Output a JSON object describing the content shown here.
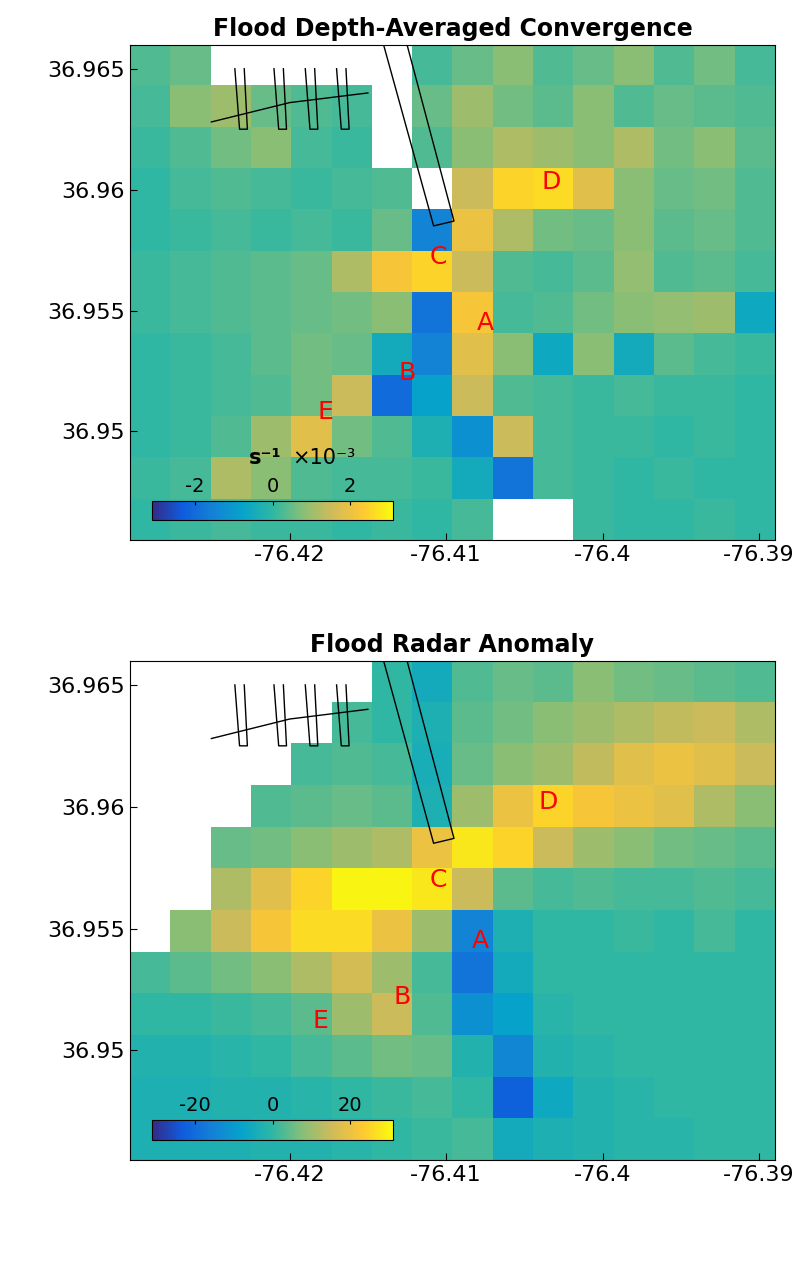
{
  "chart_data": [
    {
      "type": "heatmap",
      "title": "Flood Depth-Averaged Convergence",
      "xlim": [
        -76.4302,
        -76.389
      ],
      "ylim": [
        36.9455,
        36.966
      ],
      "xticks": [
        -76.42,
        -76.41,
        -76.4,
        -76.39
      ],
      "yticks": [
        36.95,
        36.955,
        36.96,
        36.965
      ],
      "cells": [
        [
          0.3,
          0.5,
          null,
          null,
          null,
          null,
          null,
          0.2,
          0.5,
          0.8,
          0.3,
          0.5,
          0.8,
          0.3,
          0.6,
          0.2
        ],
        [
          0.2,
          0.8,
          1.0,
          0.5,
          0.3,
          0.2,
          null,
          0.5,
          1.0,
          0.6,
          0.4,
          0.8,
          0.3,
          0.5,
          0.4,
          0.3
        ],
        [
          0.1,
          0.3,
          0.6,
          0.8,
          0.2,
          0.1,
          null,
          0.3,
          0.8,
          1.2,
          1.0,
          0.8,
          1.2,
          0.6,
          0.8,
          0.4
        ],
        [
          0.0,
          0.2,
          0.3,
          0.2,
          0.1,
          0.2,
          0.3,
          null,
          1.5,
          2.5,
          2.6,
          1.8,
          0.8,
          0.5,
          0.6,
          0.3
        ],
        [
          0.0,
          0.1,
          0.2,
          0.1,
          0.2,
          0.1,
          0.5,
          -1.5,
          2.0,
          1.2,
          0.6,
          0.5,
          0.8,
          0.4,
          0.5,
          0.3
        ],
        [
          0.1,
          0.2,
          0.3,
          0.4,
          0.5,
          1.2,
          2.2,
          2.5,
          1.5,
          0.3,
          0.2,
          0.4,
          0.9,
          0.3,
          0.4,
          0.2
        ],
        [
          0.1,
          0.2,
          0.3,
          0.4,
          0.5,
          0.6,
          0.8,
          -1.8,
          2.2,
          0.2,
          0.3,
          0.6,
          0.8,
          0.9,
          1.0,
          -0.6
        ],
        [
          0.0,
          0.1,
          0.2,
          0.4,
          0.6,
          0.5,
          -0.5,
          -1.5,
          1.8,
          0.8,
          -0.6,
          0.8,
          -0.5,
          0.4,
          0.2,
          0.1
        ],
        [
          0.0,
          0.1,
          0.2,
          0.3,
          0.6,
          1.5,
          -2.0,
          -0.8,
          1.5,
          0.3,
          0.2,
          0.1,
          0.2,
          0.1,
          0.1,
          0.0
        ],
        [
          0.0,
          0.1,
          0.3,
          1.0,
          1.8,
          0.6,
          0.3,
          -0.3,
          -1.2,
          1.5,
          0.2,
          0.1,
          0.1,
          0.0,
          0.1,
          0.0
        ],
        [
          0.1,
          0.2,
          1.2,
          0.8,
          0.3,
          0.2,
          0.2,
          0.1,
          -0.5,
          -1.8,
          0.2,
          0.1,
          0.0,
          0.1,
          0.0,
          0.0
        ],
        [
          0.0,
          0.1,
          0.2,
          0.1,
          0.1,
          0.0,
          0.1,
          0.0,
          0.2,
          null,
          null,
          0.1,
          0.0,
          0.0,
          0.1,
          0.0
        ]
      ],
      "colorbar": {
        "range": [
          -3.1,
          3.1
        ],
        "ticks": [
          -2,
          0,
          2
        ],
        "label": "s⁻¹",
        "multiplier": "×10⁻³"
      },
      "annotations": [
        {
          "text": "A",
          "x": -76.4075,
          "y": 36.9545
        },
        {
          "text": "B",
          "x": -76.4125,
          "y": 36.9524
        },
        {
          "text": "C",
          "x": -76.4105,
          "y": 36.9572
        },
        {
          "text": "D",
          "x": -76.4033,
          "y": 36.9603
        },
        {
          "text": "E",
          "x": -76.4177,
          "y": 36.9508
        }
      ]
    },
    {
      "type": "heatmap",
      "title": "Flood Radar Anomaly",
      "xlim": [
        -76.4302,
        -76.389
      ],
      "ylim": [
        36.9455,
        36.966
      ],
      "xticks": [
        -76.42,
        -76.41,
        -76.4,
        -76.39
      ],
      "yticks": [
        36.95,
        36.955,
        36.96,
        36.965
      ],
      "cells": [
        [
          null,
          null,
          null,
          null,
          null,
          null,
          0,
          -5,
          3,
          5,
          4,
          8,
          6,
          5,
          4,
          3
        ],
        [
          null,
          null,
          null,
          null,
          null,
          2,
          0,
          -3,
          4,
          6,
          8,
          10,
          12,
          14,
          15,
          12
        ],
        [
          null,
          null,
          null,
          null,
          2,
          3,
          2,
          -4,
          5,
          8,
          10,
          14,
          18,
          20,
          18,
          15
        ],
        [
          null,
          null,
          null,
          3,
          4,
          5,
          4,
          -3,
          10,
          20,
          25,
          22,
          20,
          18,
          12,
          8
        ],
        [
          null,
          null,
          5,
          6,
          8,
          10,
          12,
          20,
          28,
          25,
          15,
          10,
          8,
          6,
          5,
          4
        ],
        [
          null,
          null,
          12,
          18,
          25,
          30,
          30,
          28,
          15,
          4,
          2,
          3,
          2,
          2,
          3,
          2
        ],
        [
          null,
          8,
          15,
          22,
          26,
          26,
          20,
          10,
          -15,
          -3,
          0,
          0,
          1,
          0,
          2,
          0
        ],
        [
          2,
          4,
          6,
          8,
          12,
          16,
          10,
          2,
          -18,
          -5,
          0,
          0,
          0,
          0,
          0,
          0
        ],
        [
          0,
          0,
          1,
          2,
          4,
          10,
          15,
          3,
          -12,
          -8,
          -1,
          0,
          0,
          0,
          0,
          0
        ],
        [
          -2,
          -2,
          -1,
          0,
          2,
          4,
          6,
          5,
          -2,
          -14,
          -2,
          -1,
          0,
          0,
          0,
          0
        ],
        [
          -3,
          -3,
          -2,
          -2,
          -1,
          0,
          1,
          2,
          0,
          -22,
          -6,
          -2,
          -1,
          0,
          0,
          0
        ],
        [
          -3,
          -3,
          -3,
          -2,
          -2,
          -1,
          0,
          1,
          2,
          -5,
          -3,
          -2,
          -1,
          -1,
          0,
          0
        ]
      ],
      "colorbar": {
        "range": [
          -31,
          31
        ],
        "ticks": [
          -20,
          0,
          20
        ]
      },
      "annotations": [
        {
          "text": "A",
          "x": -76.4078,
          "y": 36.9545
        },
        {
          "text": "B",
          "x": -76.4128,
          "y": 36.9522
        },
        {
          "text": "C",
          "x": -76.4105,
          "y": 36.957
        },
        {
          "text": "D",
          "x": -76.4035,
          "y": 36.9602
        },
        {
          "text": "E",
          "x": -76.418,
          "y": 36.9512
        }
      ]
    }
  ]
}
